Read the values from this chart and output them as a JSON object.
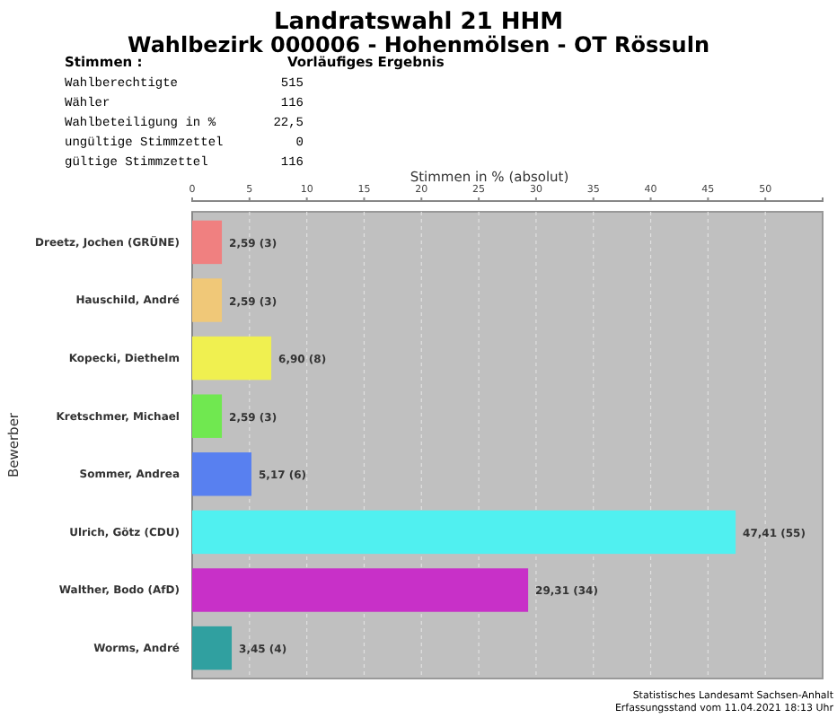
{
  "chart_data": {
    "type": "bar",
    "orientation": "horizontal",
    "title": "Landratswahl 21 HHM",
    "subtitle": "Wahlbezirk 000006 - Hohenmölsen - OT Rössuln",
    "xlabel": "Stimmen in % (absolut)",
    "ylabel": "Bewerber",
    "categories": [
      "Dreetz, Jochen (GRÜNE)",
      "Hauschild, André",
      "Kopecki, Diethelm",
      "Kretschmer, Michael",
      "Sommer, Andrea",
      "Ulrich, Götz (CDU)",
      "Walther, Bodo (AfD)",
      "Worms, André"
    ],
    "values": [
      2.59,
      2.59,
      6.9,
      2.59,
      5.17,
      47.41,
      29.31,
      3.45
    ],
    "colors": [
      "#f08080",
      "#f0c878",
      "#f0f050",
      "#70e850",
      "#5880f0",
      "#50f0f0",
      "#c830c8",
      "#30a0a0"
    ],
    "value_labels": [
      "2,59 (3)",
      "2,59 (3)",
      "6,90 (8)",
      "2,59 (3)",
      "5,17 (6)",
      "47,41 (55)",
      "29,31 (34)",
      "3,45 (4)"
    ],
    "xlim": [
      0,
      55
    ],
    "xticks": [
      0,
      5,
      10,
      15,
      20,
      25,
      30,
      35,
      40,
      45,
      50
    ],
    "grid": "x",
    "annotations": [
      "Stimmen  :",
      "Vorläufiges Ergebnis",
      "Wahlberechtigte",
      "515",
      "Wähler",
      "116",
      "Wahlbeteiligung in %",
      "22,5",
      "ungültige Stimmzettel",
      "0",
      "gültige Stimmzettel",
      "116",
      "Statistisches Landesamt Sachsen-Anhalt",
      "Erfassungsstand vom 11.04.2021 18:13 Uhr"
    ]
  }
}
